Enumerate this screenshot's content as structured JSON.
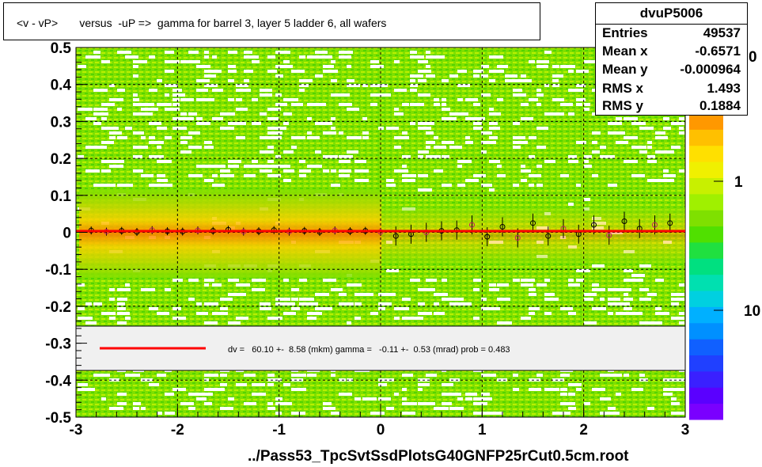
{
  "title": "<v - vP>       versus  -uP =>  gamma for barrel 3, layer 5 ladder 6, all wafers",
  "stats": {
    "name": "dvuP5006",
    "rows": [
      {
        "key": "Entries",
        "value": "49537"
      },
      {
        "key": "Mean x",
        "value": "-0.6571"
      },
      {
        "key": "Mean y",
        "value": "-0.000964"
      },
      {
        "key": "RMS x",
        "value": "1.493"
      },
      {
        "key": "RMS y",
        "value": "0.1884"
      }
    ]
  },
  "fit_legend": "dv =   60.10 +-  8.58 (mkm) gamma =   -0.11 +-  0.53 (mrad) prob = 0.483",
  "footer": "../Pass53_TpcSvtSsdPlotsG40GNFP25rCut0.5cm.root",
  "colorbar": {
    "tick_labels": [
      "1",
      "10"
    ],
    "partial_label": "0"
  },
  "colors": {
    "fit_line": "#ff0000",
    "background_green": "#7fe000",
    "dense_orange": "#ff8a00"
  },
  "chart_data": {
    "type": "heatmap",
    "title": "<v - vP>       versus  -uP =>  gamma for barrel 3, layer 5 ladder 6, all wafers",
    "xlim": [
      -3,
      3
    ],
    "ylim": [
      -0.5,
      0.5
    ],
    "x_ticks": [
      "-3",
      "-2",
      "-1",
      "0",
      "1",
      "2",
      "3"
    ],
    "y_ticks": [
      "-0.5",
      "-0.4",
      "-0.3",
      "-0.2",
      "-0.1",
      "0",
      "0.1",
      "0.2",
      "0.3",
      "0.4",
      "0.5"
    ],
    "grid": true,
    "fit": {
      "dv_mkm": 60.1,
      "dv_err": 8.58,
      "gamma_mrad": -0.11,
      "gamma_err": 0.53,
      "prob": 0.483
    },
    "profile_points": [
      {
        "x": -2.85,
        "y": 0.005
      },
      {
        "x": -2.7,
        "y": 0.002
      },
      {
        "x": -2.55,
        "y": 0.004
      },
      {
        "x": -2.4,
        "y": 0.001
      },
      {
        "x": -2.25,
        "y": 0.006
      },
      {
        "x": -2.1,
        "y": 0.003
      },
      {
        "x": -1.95,
        "y": 0.002
      },
      {
        "x": -1.8,
        "y": 0.005
      },
      {
        "x": -1.65,
        "y": 0.004
      },
      {
        "x": -1.5,
        "y": 0.007
      },
      {
        "x": -1.35,
        "y": 0.002
      },
      {
        "x": -1.2,
        "y": 0.003
      },
      {
        "x": -1.05,
        "y": 0.006
      },
      {
        "x": -0.9,
        "y": 0.002
      },
      {
        "x": -0.75,
        "y": 0.004
      },
      {
        "x": -0.6,
        "y": 0.001
      },
      {
        "x": -0.45,
        "y": 0.005
      },
      {
        "x": -0.3,
        "y": 0.003
      },
      {
        "x": -0.15,
        "y": 0.004
      },
      {
        "x": 0.0,
        "y": 0.001
      },
      {
        "x": 0.15,
        "y": -0.01
      },
      {
        "x": 0.3,
        "y": -0.005
      },
      {
        "x": 0.45,
        "y": 0.0
      },
      {
        "x": 0.6,
        "y": 0.004
      },
      {
        "x": 0.75,
        "y": 0.006
      },
      {
        "x": 0.9,
        "y": 0.02
      },
      {
        "x": 1.05,
        "y": -0.012
      },
      {
        "x": 1.2,
        "y": 0.015
      },
      {
        "x": 1.35,
        "y": -0.015
      },
      {
        "x": 1.5,
        "y": 0.025
      },
      {
        "x": 1.65,
        "y": -0.01
      },
      {
        "x": 1.8,
        "y": 0.01
      },
      {
        "x": 1.95,
        "y": -0.005
      },
      {
        "x": 2.1,
        "y": 0.02
      },
      {
        "x": 2.25,
        "y": -0.008
      },
      {
        "x": 2.4,
        "y": 0.03
      },
      {
        "x": 2.55,
        "y": 0.01
      },
      {
        "x": 2.7,
        "y": 0.02
      },
      {
        "x": 2.85,
        "y": 0.025
      }
    ]
  }
}
